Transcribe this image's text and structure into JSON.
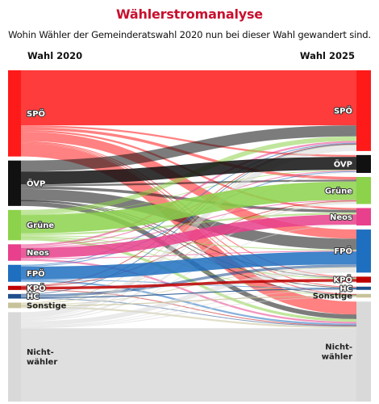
{
  "header": {
    "title": "Wählerstromanalyse",
    "subtitle": "Wohin Wähler der Gemeinderatswahl 2020 nun bei dieser Wahl gewandert sind.",
    "left_column": "Wahl 2020",
    "right_column": "Wahl 2025"
  },
  "colors": {
    "SPÖ": "#ff1a1a",
    "ÖVP": "#111111",
    "Grüne": "#8cd24b",
    "Neos": "#e8408c",
    "FPÖ": "#1f6fc0",
    "KPÖ": "#c00000",
    "HC": "#1e4f8c",
    "Sonstige": "#c8c29a",
    "Nicht-wähler": "#d9d9d9"
  },
  "chart_data": {
    "type": "sankey",
    "title": "Wählerstromanalyse",
    "left_nodes": [
      "SPÖ",
      "ÖVP",
      "Grüne",
      "Neos",
      "FPÖ",
      "KPÖ",
      "HC",
      "Sonstige",
      "Nicht-wähler"
    ],
    "right_nodes": [
      "SPÖ",
      "ÖVP",
      "Grüne",
      "Neos",
      "FPÖ",
      "KPÖ",
      "HC",
      "Sonstige",
      "Nicht-wähler"
    ],
    "flows": [
      {
        "from": "SPÖ",
        "to": "SPÖ",
        "value": 60
      },
      {
        "from": "SPÖ",
        "to": "ÖVP",
        "value": 2
      },
      {
        "from": "SPÖ",
        "to": "Grüne",
        "value": 3
      },
      {
        "from": "SPÖ",
        "to": "Neos",
        "value": 2
      },
      {
        "from": "SPÖ",
        "to": "FPÖ",
        "value": 10
      },
      {
        "from": "SPÖ",
        "to": "KPÖ",
        "value": 1
      },
      {
        "from": "SPÖ",
        "to": "HC",
        "value": 1
      },
      {
        "from": "SPÖ",
        "to": "Sonstige",
        "value": 1
      },
      {
        "from": "SPÖ",
        "to": "Nicht-wähler",
        "value": 14
      },
      {
        "from": "ÖVP",
        "to": "SPÖ",
        "value": 12
      },
      {
        "from": "ÖVP",
        "to": "ÖVP",
        "value": 14
      },
      {
        "from": "ÖVP",
        "to": "Grüne",
        "value": 2
      },
      {
        "from": "ÖVP",
        "to": "Neos",
        "value": 3
      },
      {
        "from": "ÖVP",
        "to": "FPÖ",
        "value": 12
      },
      {
        "from": "ÖVP",
        "to": "KPÖ",
        "value": 0.5
      },
      {
        "from": "ÖVP",
        "to": "HC",
        "value": 0.5
      },
      {
        "from": "ÖVP",
        "to": "Sonstige",
        "value": 0.5
      },
      {
        "from": "ÖVP",
        "to": "Nicht-wähler",
        "value": 5
      },
      {
        "from": "Grüne",
        "to": "SPÖ",
        "value": 5
      },
      {
        "from": "Grüne",
        "to": "ÖVP",
        "value": 0.5
      },
      {
        "from": "Grüne",
        "to": "Grüne",
        "value": 20
      },
      {
        "from": "Grüne",
        "to": "Neos",
        "value": 2
      },
      {
        "from": "Grüne",
        "to": "FPÖ",
        "value": 1
      },
      {
        "from": "Grüne",
        "to": "KPÖ",
        "value": 1
      },
      {
        "from": "Grüne",
        "to": "Sonstige",
        "value": 0.5
      },
      {
        "from": "Grüne",
        "to": "Nicht-wähler",
        "value": 3
      },
      {
        "from": "Neos",
        "to": "SPÖ",
        "value": 2
      },
      {
        "from": "Neos",
        "to": "ÖVP",
        "value": 1
      },
      {
        "from": "Neos",
        "to": "Grüne",
        "value": 1
      },
      {
        "from": "Neos",
        "to": "Neos",
        "value": 11
      },
      {
        "from": "Neos",
        "to": "FPÖ",
        "value": 1
      },
      {
        "from": "Neos",
        "to": "Nicht-wähler",
        "value": 2
      },
      {
        "from": "FPÖ",
        "to": "SPÖ",
        "value": 1
      },
      {
        "from": "FPÖ",
        "to": "ÖVP",
        "value": 1
      },
      {
        "from": "FPÖ",
        "to": "FPÖ",
        "value": 14
      },
      {
        "from": "FPÖ",
        "to": "HC",
        "value": 0.5
      },
      {
        "from": "FPÖ",
        "to": "Nicht-wähler",
        "value": 2
      },
      {
        "from": "KPÖ",
        "to": "SPÖ",
        "value": 0.5
      },
      {
        "from": "KPÖ",
        "to": "Grüne",
        "value": 0.5
      },
      {
        "from": "KPÖ",
        "to": "KPÖ",
        "value": 3
      },
      {
        "from": "KPÖ",
        "to": "Nicht-wähler",
        "value": 0.5
      },
      {
        "from": "HC",
        "to": "SPÖ",
        "value": 0.5
      },
      {
        "from": "HC",
        "to": "FPÖ",
        "value": 3
      },
      {
        "from": "HC",
        "to": "HC",
        "value": 1
      },
      {
        "from": "HC",
        "to": "Nicht-wähler",
        "value": 0.5
      },
      {
        "from": "Sonstige",
        "to": "SPÖ",
        "value": 1
      },
      {
        "from": "Sonstige",
        "to": "Grüne",
        "value": 1
      },
      {
        "from": "Sonstige",
        "to": "FPÖ",
        "value": 1
      },
      {
        "from": "Sonstige",
        "to": "Sonstige",
        "value": 1
      },
      {
        "from": "Sonstige",
        "to": "Nicht-wähler",
        "value": 2
      },
      {
        "from": "Nicht-wähler",
        "to": "SPÖ",
        "value": 6
      },
      {
        "from": "Nicht-wähler",
        "to": "ÖVP",
        "value": 1
      },
      {
        "from": "Nicht-wähler",
        "to": "Grüne",
        "value": 2
      },
      {
        "from": "Nicht-wähler",
        "to": "Neos",
        "value": 1
      },
      {
        "from": "Nicht-wähler",
        "to": "FPÖ",
        "value": 5
      },
      {
        "from": "Nicht-wähler",
        "to": "KPÖ",
        "value": 1
      },
      {
        "from": "Nicht-wähler",
        "to": "HC",
        "value": 0.5
      },
      {
        "from": "Nicht-wähler",
        "to": "Sonstige",
        "value": 1
      },
      {
        "from": "Nicht-wähler",
        "to": "Nicht-wähler",
        "value": 80
      }
    ]
  }
}
